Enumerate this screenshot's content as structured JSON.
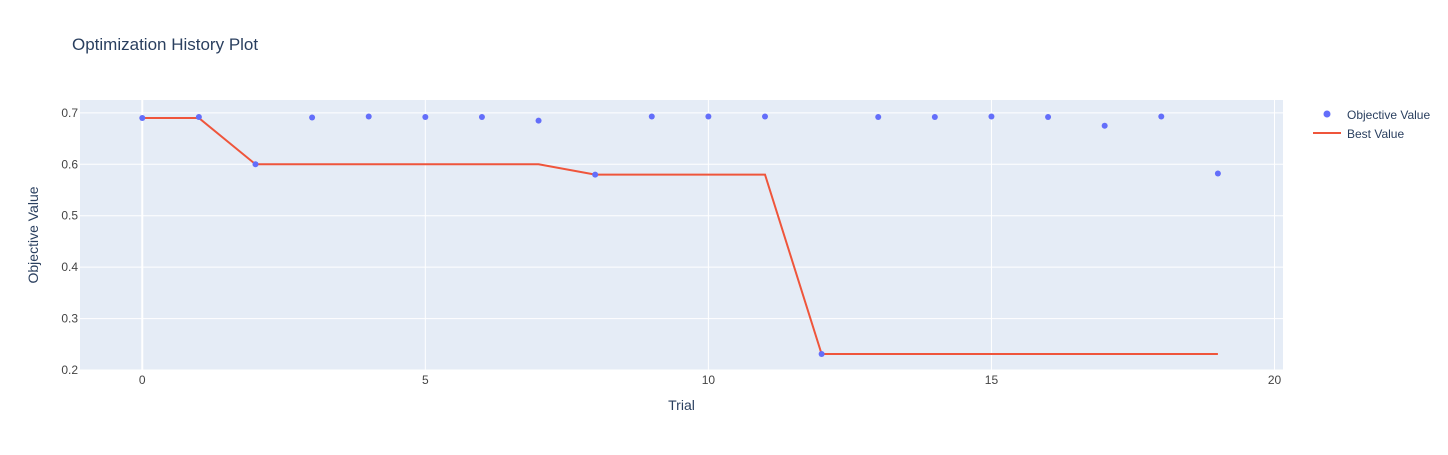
{
  "colors": {
    "plot_background": "#E5ECF6",
    "grid": "#ffffff",
    "objective_value": "#636EFA",
    "best_value": "#EF553B"
  },
  "chart_data": {
    "type": "scatter",
    "title": "Optimization History Plot",
    "xlabel": "Trial",
    "ylabel": "Objective Value",
    "xlim": [
      -1.1,
      20.15
    ],
    "ylim": [
      0.2,
      0.725
    ],
    "x_ticks": [
      0,
      5,
      10,
      15,
      20
    ],
    "y_ticks": [
      0.2,
      0.3,
      0.4,
      0.5,
      0.6,
      0.7
    ],
    "grid": true,
    "legend_position": "top-right",
    "series": [
      {
        "name": "Objective Value",
        "mode": "markers",
        "x": [
          0,
          1,
          2,
          3,
          4,
          5,
          6,
          7,
          8,
          9,
          10,
          11,
          12,
          13,
          14,
          15,
          16,
          17,
          18,
          19
        ],
        "y": [
          0.69,
          0.692,
          0.6,
          0.691,
          0.693,
          0.692,
          0.692,
          0.685,
          0.58,
          0.693,
          0.693,
          0.693,
          0.231,
          0.692,
          0.692,
          0.693,
          0.692,
          0.675,
          0.693,
          0.582
        ]
      },
      {
        "name": "Best Value",
        "mode": "line",
        "x": [
          0,
          1,
          2,
          3,
          4,
          5,
          6,
          7,
          8,
          9,
          10,
          11,
          12,
          13,
          14,
          15,
          16,
          17,
          18,
          19
        ],
        "y": [
          0.69,
          0.69,
          0.6,
          0.6,
          0.6,
          0.6,
          0.6,
          0.6,
          0.58,
          0.58,
          0.58,
          0.58,
          0.231,
          0.231,
          0.231,
          0.231,
          0.231,
          0.231,
          0.231,
          0.231
        ]
      }
    ]
  }
}
